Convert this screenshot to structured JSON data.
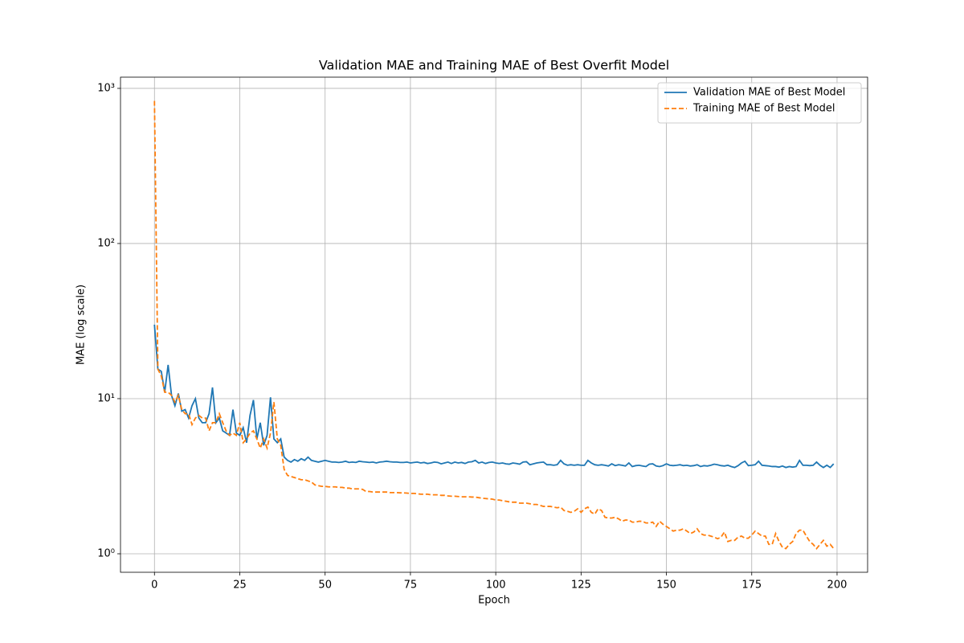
{
  "chart_data": {
    "type": "line",
    "title": "Validation MAE and Training MAE of Best Overfit Model",
    "xlabel": "Epoch",
    "ylabel": "MAE (log scale)",
    "yscale": "log",
    "grid": true,
    "legend": "upper right",
    "xlim": [
      -9.95,
      208.95
    ],
    "xticks": [
      0,
      25,
      50,
      75,
      100,
      125,
      150,
      175,
      200
    ],
    "ylim": [
      0.76,
      1181
    ],
    "yticks": [
      {
        "value": 1,
        "label": "10⁰"
      },
      {
        "value": 10,
        "label": "10¹"
      },
      {
        "value": 100,
        "label": "10²"
      },
      {
        "value": 1000,
        "label": "10³"
      }
    ],
    "x": [
      0,
      1,
      2,
      3,
      4,
      5,
      6,
      7,
      8,
      9,
      10,
      11,
      12,
      13,
      14,
      15,
      16,
      17,
      18,
      19,
      20,
      21,
      22,
      23,
      24,
      25,
      26,
      27,
      28,
      29,
      30,
      31,
      32,
      33,
      34,
      35,
      36,
      37,
      38,
      39,
      40,
      41,
      42,
      43,
      44,
      45,
      46,
      47,
      48,
      49,
      50,
      51,
      52,
      53,
      54,
      55,
      56,
      57,
      58,
      59,
      60,
      61,
      62,
      63,
      64,
      65,
      66,
      67,
      68,
      69,
      70,
      71,
      72,
      73,
      74,
      75,
      76,
      77,
      78,
      79,
      80,
      81,
      82,
      83,
      84,
      85,
      86,
      87,
      88,
      89,
      90,
      91,
      92,
      93,
      94,
      95,
      96,
      97,
      98,
      99,
      100,
      101,
      102,
      103,
      104,
      105,
      106,
      107,
      108,
      109,
      110,
      111,
      112,
      113,
      114,
      115,
      116,
      117,
      118,
      119,
      120,
      121,
      122,
      123,
      124,
      125,
      126,
      127,
      128,
      129,
      130,
      131,
      132,
      133,
      134,
      135,
      136,
      137,
      138,
      139,
      140,
      141,
      142,
      143,
      144,
      145,
      146,
      147,
      148,
      149,
      150,
      151,
      152,
      153,
      154,
      155,
      156,
      157,
      158,
      159,
      160,
      161,
      162,
      163,
      164,
      165,
      166,
      167,
      168,
      169,
      170,
      171,
      172,
      173,
      174,
      175,
      176,
      177,
      178,
      179,
      180,
      181,
      182,
      183,
      184,
      185,
      186,
      187,
      188,
      189,
      190,
      191,
      192,
      193,
      194,
      195,
      196,
      197,
      198,
      199
    ],
    "series": [
      {
        "name": "Validation MAE of Best Model",
        "color": "#1f77b4",
        "linestyle": "solid",
        "values": [
          30,
          15.5,
          15,
          11,
          16.5,
          10.5,
          9,
          10.8,
          8.3,
          8.5,
          7.5,
          9,
          10,
          7.5,
          7,
          7,
          8,
          11.8,
          7,
          7.5,
          6.2,
          6,
          5.8,
          8.5,
          6,
          5.8,
          6.5,
          5.2,
          7.8,
          9.8,
          5.5,
          7,
          5,
          5.8,
          10.2,
          5.5,
          5.2,
          5.5,
          4.2,
          4,
          3.9,
          4.05,
          3.95,
          4.1,
          4.0,
          4.2,
          4.0,
          3.95,
          3.9,
          3.95,
          4.0,
          3.95,
          3.9,
          3.9,
          3.88,
          3.9,
          3.95,
          3.88,
          3.9,
          3.88,
          3.95,
          3.92,
          3.9,
          3.88,
          3.9,
          3.85,
          3.9,
          3.92,
          3.95,
          3.92,
          3.9,
          3.9,
          3.88,
          3.88,
          3.9,
          3.85,
          3.88,
          3.9,
          3.85,
          3.88,
          3.82,
          3.85,
          3.9,
          3.88,
          3.8,
          3.85,
          3.9,
          3.82,
          3.9,
          3.85,
          3.88,
          3.82,
          3.9,
          3.92,
          4.0,
          3.85,
          3.9,
          3.82,
          3.88,
          3.9,
          3.85,
          3.82,
          3.85,
          3.8,
          3.78,
          3.85,
          3.82,
          3.78,
          3.9,
          3.92,
          3.75,
          3.8,
          3.85,
          3.88,
          3.9,
          3.75,
          3.75,
          3.72,
          3.75,
          4.0,
          3.8,
          3.72,
          3.75,
          3.72,
          3.75,
          3.72,
          3.72,
          4.0,
          3.85,
          3.75,
          3.72,
          3.75,
          3.72,
          3.68,
          3.8,
          3.7,
          3.75,
          3.72,
          3.68,
          3.85,
          3.65,
          3.7,
          3.72,
          3.68,
          3.65,
          3.78,
          3.8,
          3.68,
          3.65,
          3.7,
          3.8,
          3.72,
          3.7,
          3.72,
          3.75,
          3.7,
          3.72,
          3.68,
          3.7,
          3.75,
          3.65,
          3.7,
          3.68,
          3.72,
          3.78,
          3.75,
          3.7,
          3.68,
          3.72,
          3.65,
          3.6,
          3.7,
          3.85,
          3.95,
          3.7,
          3.72,
          3.75,
          3.95,
          3.72,
          3.7,
          3.68,
          3.65,
          3.65,
          3.62,
          3.68,
          3.6,
          3.65,
          3.62,
          3.65,
          4.0,
          3.72,
          3.72,
          3.7,
          3.72,
          3.9,
          3.72,
          3.6,
          3.72,
          3.6,
          3.8
        ]
      },
      {
        "name": "Training MAE of Best Model",
        "color": "#ff7f0e",
        "linestyle": "dashed",
        "values": [
          830,
          15.5,
          14,
          11,
          11,
          10.5,
          9.5,
          10.5,
          8.5,
          8,
          8,
          6.8,
          7.5,
          7.8,
          7.5,
          7.5,
          6.2,
          7,
          7,
          8,
          7,
          6.2,
          5.8,
          6,
          5.8,
          7,
          5.2,
          5.5,
          6,
          6.2,
          5.5,
          4.8,
          5.5,
          4.8,
          6,
          9.5,
          5.5,
          5,
          3.5,
          3.2,
          3.15,
          3.1,
          3.05,
          3.0,
          3.0,
          2.95,
          2.9,
          2.78,
          2.75,
          2.72,
          2.72,
          2.7,
          2.7,
          2.7,
          2.68,
          2.68,
          2.65,
          2.65,
          2.62,
          2.62,
          2.62,
          2.6,
          2.52,
          2.52,
          2.5,
          2.5,
          2.5,
          2.5,
          2.5,
          2.48,
          2.48,
          2.48,
          2.47,
          2.47,
          2.46,
          2.45,
          2.45,
          2.44,
          2.42,
          2.42,
          2.42,
          2.4,
          2.4,
          2.4,
          2.38,
          2.38,
          2.36,
          2.35,
          2.35,
          2.34,
          2.33,
          2.33,
          2.33,
          2.32,
          2.32,
          2.3,
          2.28,
          2.27,
          2.26,
          2.25,
          2.22,
          2.22,
          2.2,
          2.18,
          2.16,
          2.15,
          2.15,
          2.12,
          2.12,
          2.12,
          2.1,
          2.08,
          2.08,
          2.05,
          2.02,
          2.02,
          2.02,
          2.0,
          1.98,
          2.0,
          1.9,
          1.88,
          1.85,
          1.88,
          1.95,
          1.85,
          1.95,
          2.0,
          1.85,
          1.8,
          1.95,
          1.9,
          1.72,
          1.7,
          1.7,
          1.72,
          1.68,
          1.62,
          1.65,
          1.65,
          1.6,
          1.6,
          1.62,
          1.62,
          1.58,
          1.58,
          1.6,
          1.5,
          1.62,
          1.55,
          1.5,
          1.45,
          1.4,
          1.42,
          1.42,
          1.45,
          1.4,
          1.35,
          1.38,
          1.45,
          1.35,
          1.32,
          1.32,
          1.3,
          1.28,
          1.25,
          1.28,
          1.38,
          1.2,
          1.22,
          1.22,
          1.28,
          1.3,
          1.26,
          1.26,
          1.32,
          1.4,
          1.35,
          1.3,
          1.3,
          1.15,
          1.15,
          1.35,
          1.2,
          1.1,
          1.08,
          1.15,
          1.2,
          1.35,
          1.42,
          1.42,
          1.3,
          1.2,
          1.15,
          1.08,
          1.15,
          1.22,
          1.12,
          1.15,
          1.08
        ]
      }
    ]
  }
}
